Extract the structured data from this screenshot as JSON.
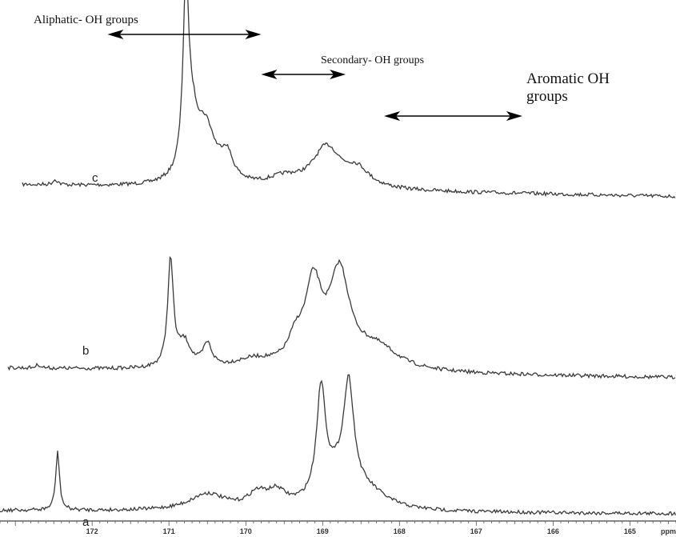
{
  "chart_data": {
    "type": "line",
    "title": "",
    "xlabel": "ppm",
    "ylabel": "",
    "xlim": [
      173.2,
      164.4
    ],
    "x_reversed": true,
    "x_ticks": [
      "172",
      "171",
      "170",
      "169",
      "168",
      "167",
      "166",
      "165"
    ],
    "grid": false,
    "legend": "none",
    "line_color": "#3a3a3a",
    "annotations": [
      {
        "text": "Aliphatic- OH groups",
        "from_ppm": 171.8,
        "to_ppm": 169.8
      },
      {
        "text": "Secondary- OH groups",
        "from_ppm": 169.8,
        "to_ppm": 168.7
      },
      {
        "text": "Aromatic OH",
        "text2": "groups",
        "from_ppm": 168.2,
        "to_ppm": 166.4
      }
    ],
    "series": [
      {
        "name": "c",
        "baseline": 0.02,
        "peaks": [
          {
            "ppm": 170.78,
            "height": 1.0,
            "width": 0.045
          },
          {
            "ppm": 170.7,
            "height": 0.28,
            "width": 0.1
          },
          {
            "ppm": 170.52,
            "height": 0.3,
            "width": 0.15
          },
          {
            "ppm": 170.25,
            "height": 0.15,
            "width": 0.1
          },
          {
            "ppm": 169.5,
            "height": 0.05,
            "width": 0.25
          },
          {
            "ppm": 168.95,
            "height": 0.23,
            "width": 0.22
          },
          {
            "ppm": 168.55,
            "height": 0.1,
            "width": 0.2
          },
          {
            "ppm": 172.48,
            "height": 0.03,
            "width": 0.04
          }
        ]
      },
      {
        "name": "b",
        "baseline": 0.0,
        "peaks": [
          {
            "ppm": 170.98,
            "height": 0.95,
            "width": 0.045
          },
          {
            "ppm": 170.8,
            "height": 0.22,
            "width": 0.1
          },
          {
            "ppm": 170.5,
            "height": 0.2,
            "width": 0.07
          },
          {
            "ppm": 169.9,
            "height": 0.08,
            "width": 0.3
          },
          {
            "ppm": 169.35,
            "height": 0.2,
            "width": 0.12
          },
          {
            "ppm": 169.12,
            "height": 0.7,
            "width": 0.13
          },
          {
            "ppm": 168.78,
            "height": 0.82,
            "width": 0.16
          },
          {
            "ppm": 168.3,
            "height": 0.2,
            "width": 0.35
          },
          {
            "ppm": 172.7,
            "height": 0.03,
            "width": 0.04
          }
        ]
      },
      {
        "name": "a",
        "baseline": 0.0,
        "peaks": [
          {
            "ppm": 172.45,
            "height": 0.5,
            "width": 0.03
          },
          {
            "ppm": 170.5,
            "height": 0.14,
            "width": 0.28
          },
          {
            "ppm": 169.85,
            "height": 0.12,
            "width": 0.15
          },
          {
            "ppm": 169.6,
            "height": 0.13,
            "width": 0.15
          },
          {
            "ppm": 169.02,
            "height": 0.92,
            "width": 0.07
          },
          {
            "ppm": 168.66,
            "height": 0.88,
            "width": 0.08
          },
          {
            "ppm": 168.8,
            "height": 0.25,
            "width": 0.25
          },
          {
            "ppm": 168.4,
            "height": 0.12,
            "width": 0.3
          }
        ]
      }
    ]
  }
}
